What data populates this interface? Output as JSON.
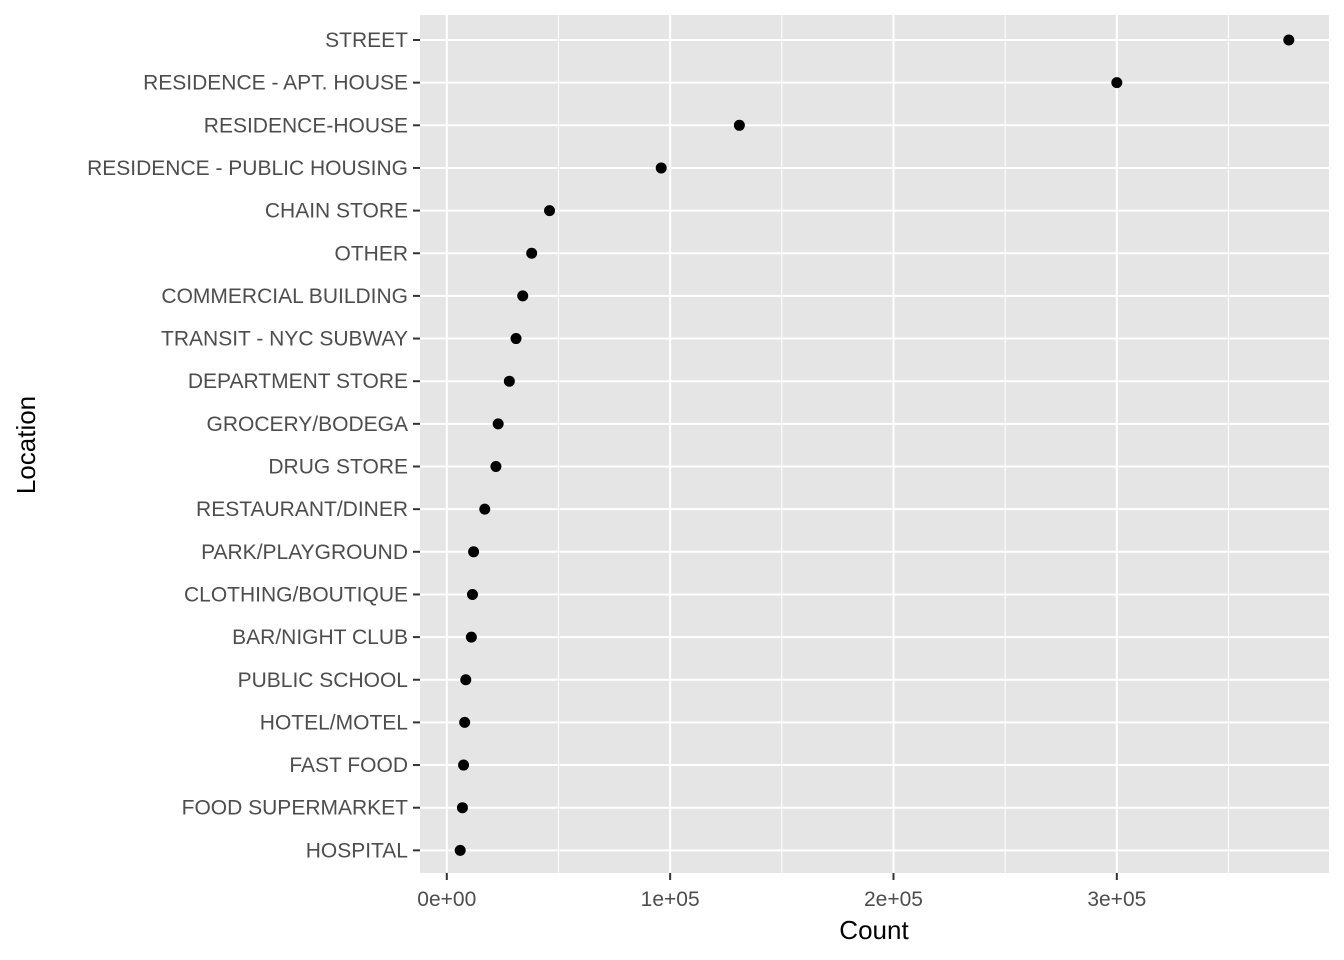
{
  "chart_data": {
    "type": "scatter",
    "title": "",
    "xlabel": "Count",
    "ylabel": "Location",
    "xlim": [
      -12000,
      395000
    ],
    "x_ticks": [
      0,
      100000,
      200000,
      300000
    ],
    "x_tick_labels": [
      "0e+00",
      "1e+05",
      "2e+05",
      "3e+05"
    ],
    "grid": true,
    "legend": "none",
    "categories": [
      "STREET",
      "RESIDENCE - APT. HOUSE",
      "RESIDENCE-HOUSE",
      "RESIDENCE - PUBLIC HOUSING",
      "CHAIN STORE",
      "OTHER",
      "COMMERCIAL BUILDING",
      "TRANSIT - NYC SUBWAY",
      "DEPARTMENT STORE",
      "GROCERY/BODEGA",
      "DRUG STORE",
      "RESTAURANT/DINER",
      "PARK/PLAYGROUND",
      "CLOTHING/BOUTIQUE",
      "BAR/NIGHT CLUB",
      "PUBLIC SCHOOL",
      "HOTEL/MOTEL",
      "FAST FOOD",
      "FOOD SUPERMARKET",
      "HOSPITAL"
    ],
    "values": [
      377000,
      300000,
      131000,
      96000,
      46000,
      38000,
      34000,
      31000,
      28000,
      23000,
      22000,
      17000,
      12000,
      11500,
      11000,
      8500,
      8000,
      7500,
      7000,
      6000
    ],
    "colors": {
      "panel": "#e5e5e5",
      "grid_major": "#ffffff",
      "point": "#000000",
      "tick_text": "#4d4d4d",
      "tick_mark": "#333333"
    }
  }
}
